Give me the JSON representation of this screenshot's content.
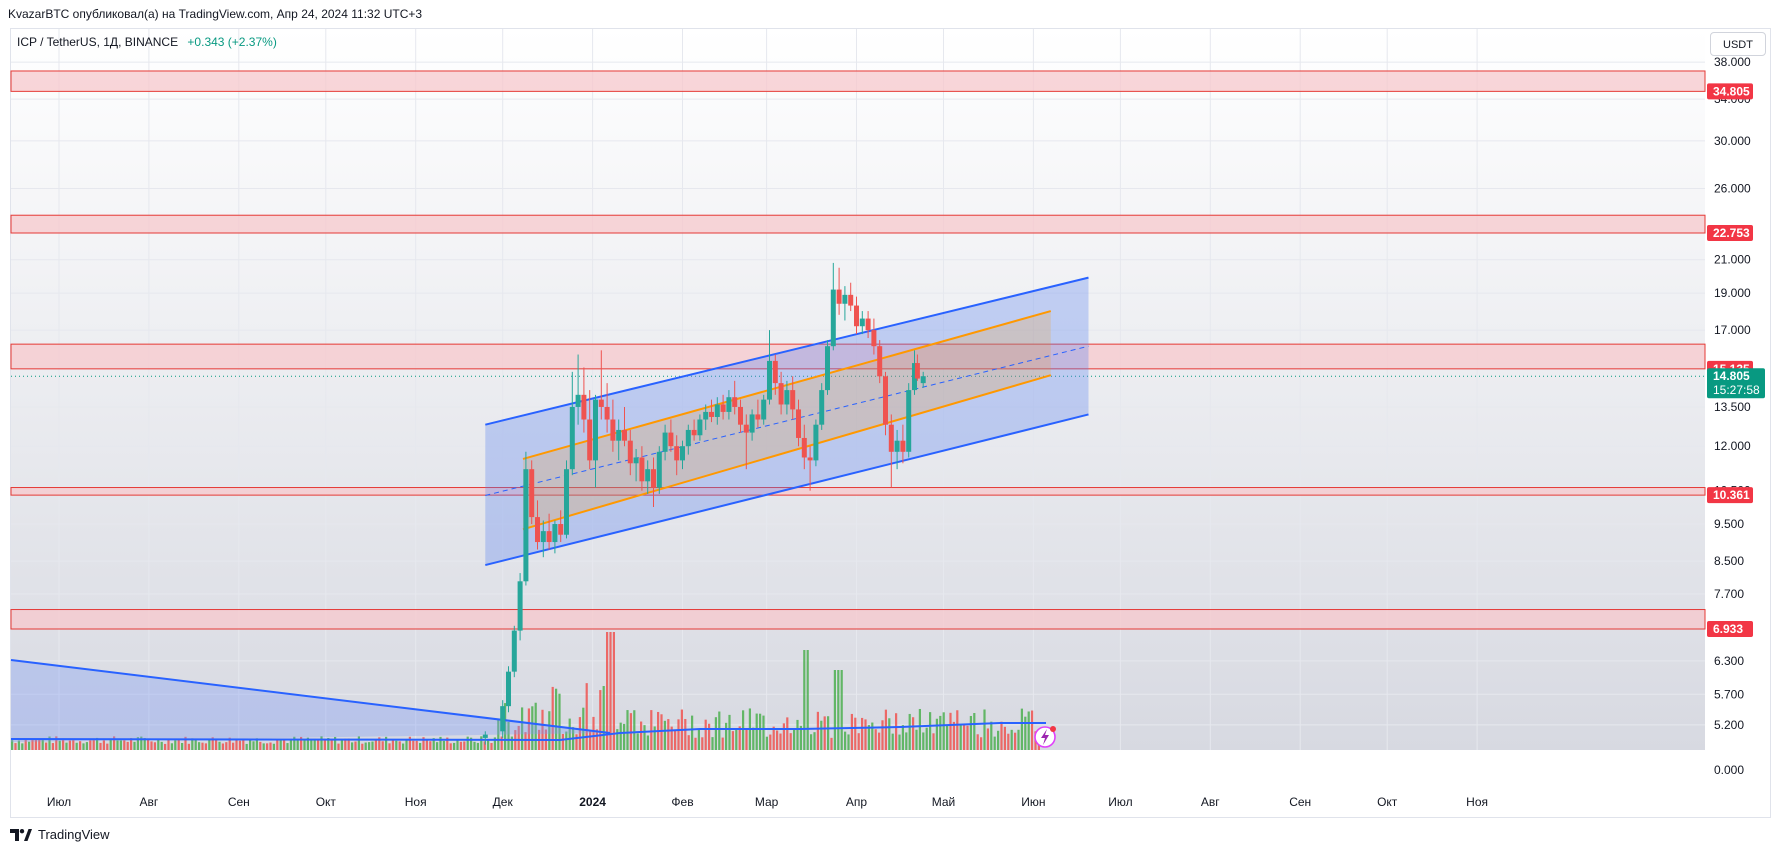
{
  "header": {
    "publish_line": "KvazarBTC опубликовал(а) на TradingView.com, Апр 24, 2024 11:32 UTC+3"
  },
  "legend": {
    "symbol": "ICP / TetherUS, 1Д, BINANCE",
    "change": "+0.343 (+2.37%)"
  },
  "toolbar": {
    "currency": "USDT"
  },
  "footer": {
    "brand": "TradingView"
  },
  "colors": {
    "up": "#26a69a",
    "down": "#ef5350",
    "channel": "#2962ff",
    "inner_channel": "#ff9800",
    "zone_fill": "#f7c8cc",
    "zone_line": "#e53935",
    "price_tag": "#089981"
  },
  "chart_data": {
    "type": "candlestick",
    "y_scale": "log",
    "y_ticks": [
      "38.000",
      "34.000",
      "30.000",
      "26.000",
      "21.000",
      "19.000",
      "17.000",
      "13.500",
      "12.000",
      "10.500",
      "9.500",
      "8.500",
      "7.700",
      "6.300",
      "5.700",
      "5.200",
      "0.000"
    ],
    "x_ticks": [
      {
        "label": "Июл",
        "date": "2023-07-01"
      },
      {
        "label": "Авг",
        "date": "2023-08-01"
      },
      {
        "label": "Сен",
        "date": "2023-09-01"
      },
      {
        "label": "Окт",
        "date": "2023-10-01"
      },
      {
        "label": "Ноя",
        "date": "2023-11-01"
      },
      {
        "label": "Дек",
        "date": "2023-12-01"
      },
      {
        "label": "2024",
        "date": "2024-01-01",
        "bold": true
      },
      {
        "label": "Фев",
        "date": "2024-02-01"
      },
      {
        "label": "Мар",
        "date": "2024-03-01"
      },
      {
        "label": "Апр",
        "date": "2024-04-01"
      },
      {
        "label": "Май",
        "date": "2024-05-01"
      },
      {
        "label": "Июн",
        "date": "2024-06-01"
      },
      {
        "label": "Июл",
        "date": "2024-07-01"
      },
      {
        "label": "Авг",
        "date": "2024-08-01"
      },
      {
        "label": "Сен",
        "date": "2024-09-01"
      },
      {
        "label": "Окт",
        "date": "2024-10-01"
      },
      {
        "label": "Ноя",
        "date": "2024-11-01"
      }
    ],
    "zones": [
      {
        "label": "34.805",
        "top": 37.0,
        "bottom": 34.805
      },
      {
        "label": "22.753",
        "top": 24.0,
        "bottom": 22.753
      },
      {
        "label": "15.135",
        "top": 16.3,
        "bottom": 15.135
      },
      {
        "label": "10.361",
        "top": 10.6,
        "bottom": 10.361
      },
      {
        "label": "6.933",
        "top": 7.35,
        "bottom": 6.933
      }
    ],
    "last_price": {
      "value": 14.805,
      "label": "14.805",
      "countdown": "15:27:58"
    },
    "channel": {
      "start": "2023-11-25",
      "end": "2024-06-20",
      "upper": [
        12.8,
        19.9
      ],
      "lower": [
        8.4,
        13.2
      ],
      "mid": [
        10.35,
        16.2
      ]
    },
    "inner_channel": {
      "start": "2023-12-08",
      "end": "2024-06-07",
      "upper": [
        11.55,
        18.0
      ],
      "lower": [
        9.35,
        14.85
      ]
    },
    "candles": [
      {
        "d": "2023-11-25",
        "o": 5.0,
        "h": 5.1,
        "l": 4.9,
        "c": 5.05
      },
      {
        "d": "2023-12-01",
        "o": 5.1,
        "h": 5.6,
        "l": 5.0,
        "c": 5.5
      },
      {
        "d": "2023-12-03",
        "o": 5.5,
        "h": 6.2,
        "l": 5.4,
        "c": 6.1
      },
      {
        "d": "2023-12-05",
        "o": 6.1,
        "h": 7.0,
        "l": 6.0,
        "c": 6.9
      },
      {
        "d": "2023-12-07",
        "o": 6.9,
        "h": 8.2,
        "l": 6.7,
        "c": 8.0
      },
      {
        "d": "2023-12-09",
        "o": 8.0,
        "h": 11.8,
        "l": 7.9,
        "c": 11.2
      },
      {
        "d": "2023-12-11",
        "o": 11.2,
        "h": 11.5,
        "l": 9.5,
        "c": 9.7
      },
      {
        "d": "2023-12-13",
        "o": 9.7,
        "h": 10.2,
        "l": 8.8,
        "c": 9.0
      },
      {
        "d": "2023-12-15",
        "o": 9.0,
        "h": 9.6,
        "l": 8.6,
        "c": 9.3
      },
      {
        "d": "2023-12-17",
        "o": 9.3,
        "h": 9.8,
        "l": 8.8,
        "c": 9.0
      },
      {
        "d": "2023-12-19",
        "o": 9.0,
        "h": 9.6,
        "l": 8.7,
        "c": 9.5
      },
      {
        "d": "2023-12-21",
        "o": 9.5,
        "h": 9.9,
        "l": 9.0,
        "c": 9.2
      },
      {
        "d": "2023-12-23",
        "o": 9.2,
        "h": 11.5,
        "l": 9.1,
        "c": 11.2
      },
      {
        "d": "2023-12-25",
        "o": 11.2,
        "h": 15.0,
        "l": 11.0,
        "c": 13.5
      },
      {
        "d": "2023-12-27",
        "o": 13.5,
        "h": 15.8,
        "l": 12.8,
        "c": 14.0
      },
      {
        "d": "2023-12-29",
        "o": 14.0,
        "h": 15.2,
        "l": 12.5,
        "c": 13.0
      },
      {
        "d": "2023-12-31",
        "o": 13.0,
        "h": 14.2,
        "l": 11.2,
        "c": 11.5
      },
      {
        "d": "2024-01-02",
        "o": 11.5,
        "h": 14.0,
        "l": 10.6,
        "c": 13.8
      },
      {
        "d": "2024-01-04",
        "o": 13.8,
        "h": 16.0,
        "l": 13.0,
        "c": 13.5
      },
      {
        "d": "2024-01-06",
        "o": 13.5,
        "h": 14.5,
        "l": 12.5,
        "c": 13.0
      },
      {
        "d": "2024-01-08",
        "o": 13.0,
        "h": 13.8,
        "l": 11.8,
        "c": 12.2
      },
      {
        "d": "2024-01-10",
        "o": 12.2,
        "h": 13.0,
        "l": 11.5,
        "c": 12.6
      },
      {
        "d": "2024-01-12",
        "o": 12.6,
        "h": 13.5,
        "l": 12.0,
        "c": 12.2
      },
      {
        "d": "2024-01-14",
        "o": 12.2,
        "h": 12.6,
        "l": 11.0,
        "c": 11.4
      },
      {
        "d": "2024-01-16",
        "o": 11.4,
        "h": 11.9,
        "l": 10.8,
        "c": 11.6
      },
      {
        "d": "2024-01-18",
        "o": 11.6,
        "h": 12.0,
        "l": 10.5,
        "c": 10.8
      },
      {
        "d": "2024-01-20",
        "o": 10.8,
        "h": 11.5,
        "l": 10.4,
        "c": 11.2
      },
      {
        "d": "2024-01-22",
        "o": 11.2,
        "h": 11.6,
        "l": 10.0,
        "c": 10.6
      },
      {
        "d": "2024-01-24",
        "o": 10.6,
        "h": 12.0,
        "l": 10.4,
        "c": 11.8
      },
      {
        "d": "2024-01-26",
        "o": 11.8,
        "h": 12.8,
        "l": 11.5,
        "c": 12.5
      },
      {
        "d": "2024-01-28",
        "o": 12.5,
        "h": 13.0,
        "l": 11.8,
        "c": 12.0
      },
      {
        "d": "2024-01-30",
        "o": 12.0,
        "h": 12.4,
        "l": 11.0,
        "c": 11.5
      },
      {
        "d": "2024-02-01",
        "o": 11.5,
        "h": 12.2,
        "l": 11.2,
        "c": 12.0
      },
      {
        "d": "2024-02-03",
        "o": 12.0,
        "h": 12.8,
        "l": 11.7,
        "c": 12.6
      },
      {
        "d": "2024-02-05",
        "o": 12.6,
        "h": 13.0,
        "l": 12.2,
        "c": 12.4
      },
      {
        "d": "2024-02-07",
        "o": 12.4,
        "h": 13.2,
        "l": 12.2,
        "c": 13.0
      },
      {
        "d": "2024-02-09",
        "o": 13.0,
        "h": 13.6,
        "l": 12.6,
        "c": 13.3
      },
      {
        "d": "2024-02-11",
        "o": 13.3,
        "h": 13.8,
        "l": 12.9,
        "c": 13.1
      },
      {
        "d": "2024-02-13",
        "o": 13.1,
        "h": 13.9,
        "l": 12.8,
        "c": 13.6
      },
      {
        "d": "2024-02-15",
        "o": 13.6,
        "h": 14.0,
        "l": 13.0,
        "c": 13.3
      },
      {
        "d": "2024-02-17",
        "o": 13.3,
        "h": 14.2,
        "l": 13.0,
        "c": 13.9
      },
      {
        "d": "2024-02-19",
        "o": 13.9,
        "h": 14.6,
        "l": 13.2,
        "c": 13.5
      },
      {
        "d": "2024-02-21",
        "o": 13.5,
        "h": 13.8,
        "l": 12.5,
        "c": 12.8
      },
      {
        "d": "2024-02-23",
        "o": 12.8,
        "h": 13.2,
        "l": 11.2,
        "c": 12.5
      },
      {
        "d": "2024-02-25",
        "o": 12.5,
        "h": 13.4,
        "l": 12.2,
        "c": 13.2
      },
      {
        "d": "2024-02-27",
        "o": 13.2,
        "h": 13.8,
        "l": 12.7,
        "c": 13.0
      },
      {
        "d": "2024-02-29",
        "o": 13.0,
        "h": 14.0,
        "l": 12.8,
        "c": 13.8
      },
      {
        "d": "2024-03-02",
        "o": 13.8,
        "h": 17.0,
        "l": 13.6,
        "c": 15.5
      },
      {
        "d": "2024-03-04",
        "o": 15.5,
        "h": 15.8,
        "l": 14.0,
        "c": 14.5
      },
      {
        "d": "2024-03-06",
        "o": 14.5,
        "h": 15.0,
        "l": 13.2,
        "c": 13.6
      },
      {
        "d": "2024-03-08",
        "o": 13.6,
        "h": 14.6,
        "l": 13.2,
        "c": 14.2
      },
      {
        "d": "2024-03-10",
        "o": 14.2,
        "h": 14.8,
        "l": 13.0,
        "c": 13.4
      },
      {
        "d": "2024-03-12",
        "o": 13.4,
        "h": 13.8,
        "l": 12.0,
        "c": 12.3
      },
      {
        "d": "2024-03-14",
        "o": 12.3,
        "h": 12.8,
        "l": 11.2,
        "c": 11.6
      },
      {
        "d": "2024-03-16",
        "o": 11.6,
        "h": 12.0,
        "l": 10.5,
        "c": 11.5
      },
      {
        "d": "2024-03-18",
        "o": 11.5,
        "h": 13.0,
        "l": 11.3,
        "c": 12.8
      },
      {
        "d": "2024-03-20",
        "o": 12.8,
        "h": 14.5,
        "l": 12.6,
        "c": 14.2
      },
      {
        "d": "2024-03-22",
        "o": 14.2,
        "h": 16.5,
        "l": 14.0,
        "c": 16.2
      },
      {
        "d": "2024-03-24",
        "o": 16.2,
        "h": 20.8,
        "l": 16.0,
        "c": 19.2
      },
      {
        "d": "2024-03-26",
        "o": 19.2,
        "h": 20.5,
        "l": 17.8,
        "c": 18.4
      },
      {
        "d": "2024-03-28",
        "o": 18.4,
        "h": 19.4,
        "l": 17.5,
        "c": 18.9
      },
      {
        "d": "2024-03-30",
        "o": 18.9,
        "h": 19.6,
        "l": 18.0,
        "c": 18.3
      },
      {
        "d": "2024-04-01",
        "o": 18.3,
        "h": 18.8,
        "l": 16.8,
        "c": 17.2
      },
      {
        "d": "2024-04-03",
        "o": 17.2,
        "h": 18.0,
        "l": 16.8,
        "c": 17.6
      },
      {
        "d": "2024-04-05",
        "o": 17.6,
        "h": 18.0,
        "l": 16.6,
        "c": 17.0
      },
      {
        "d": "2024-04-07",
        "o": 17.0,
        "h": 17.6,
        "l": 15.8,
        "c": 16.2
      },
      {
        "d": "2024-04-09",
        "o": 16.2,
        "h": 16.5,
        "l": 14.5,
        "c": 14.8
      },
      {
        "d": "2024-04-11",
        "o": 14.8,
        "h": 15.0,
        "l": 12.4,
        "c": 12.8
      },
      {
        "d": "2024-04-13",
        "o": 12.8,
        "h": 13.2,
        "l": 10.6,
        "c": 11.8
      },
      {
        "d": "2024-04-15",
        "o": 11.8,
        "h": 12.6,
        "l": 11.2,
        "c": 12.2
      },
      {
        "d": "2024-04-17",
        "o": 12.2,
        "h": 12.8,
        "l": 11.4,
        "c": 11.8
      },
      {
        "d": "2024-04-19",
        "o": 11.8,
        "h": 14.5,
        "l": 11.6,
        "c": 14.2
      },
      {
        "d": "2024-04-21",
        "o": 14.2,
        "h": 16.0,
        "l": 14.0,
        "c": 15.4
      },
      {
        "d": "2024-04-22",
        "o": 15.4,
        "h": 15.8,
        "l": 14.6,
        "c": 14.7
      },
      {
        "d": "2024-04-24",
        "o": 14.5,
        "h": 15.0,
        "l": 14.3,
        "c": 14.805
      }
    ]
  }
}
